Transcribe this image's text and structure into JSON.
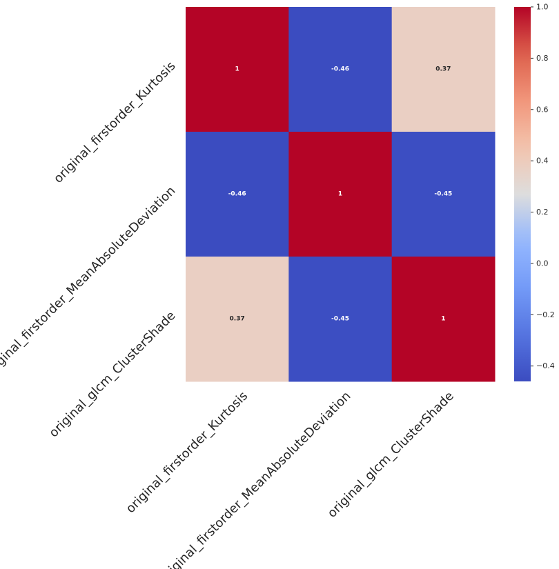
{
  "chart_data": {
    "type": "heatmap",
    "title": "",
    "xlabel": "",
    "ylabel": "",
    "x_labels": [
      "original_firstorder_Kurtosis",
      "original_firstorder_MeanAbsoluteDeviation",
      "original_glcm_ClusterShade"
    ],
    "y_labels": [
      "original_firstorder_Kurtosis",
      "original_firstorder_MeanAbsoluteDeviation",
      "original_glcm_ClusterShade"
    ],
    "values": [
      [
        1,
        -0.46,
        0.37
      ],
      [
        -0.46,
        1,
        -0.45
      ],
      [
        0.37,
        -0.45,
        1
      ]
    ],
    "annotations": [
      [
        "1",
        "-0.46",
        "0.37"
      ],
      [
        "-0.46",
        "1",
        "-0.45"
      ],
      [
        "0.37",
        "-0.45",
        "1"
      ]
    ],
    "colormap": "coolwarm",
    "vmin": -0.46,
    "vmax": 1.0,
    "colorbar": {
      "ticks": [
        -0.4,
        -0.2,
        0.0,
        0.2,
        0.4,
        0.6,
        0.8,
        1.0
      ],
      "tick_labels": [
        "−0.4",
        "−0.2",
        "0.0",
        "0.2",
        "0.4",
        "0.6",
        "0.8",
        "1.0"
      ]
    }
  }
}
